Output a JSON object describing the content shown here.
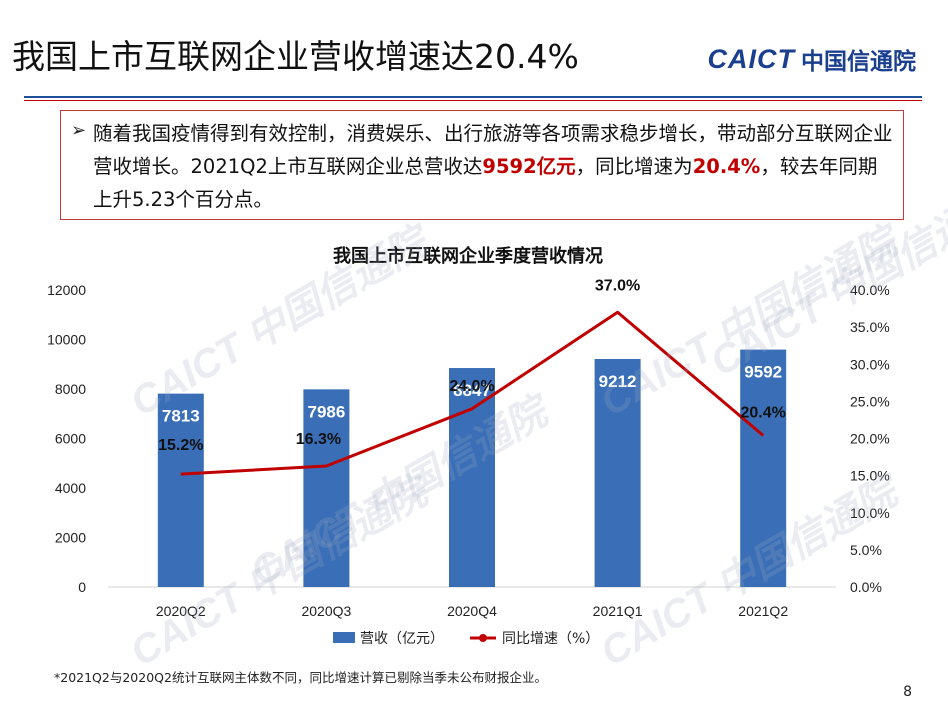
{
  "header": {
    "title": "我国上市互联网企业营收增速达20.4%",
    "logo_en": "CAICT",
    "logo_cn": "中国信通院"
  },
  "callout": {
    "bullet_icon": "arrow-bullet-icon",
    "text_part1": "随着我国疫情得到有效控制，消费娱乐、出行旅游等各项需求稳步增长，带动部分互联网企业营收增长。2021Q2上市互联网企业总营收达",
    "highlight1": "9592亿元",
    "text_part2": "，同比增速为",
    "highlight2": "20.4%",
    "text_part3": "，较去年同期上升5.23个百分点。"
  },
  "chart_data": {
    "type": "bar",
    "title": "我国上市互联网企业季度营收情况",
    "categories": [
      "2020Q2",
      "2020Q3",
      "2020Q4",
      "2021Q1",
      "2021Q2"
    ],
    "series": [
      {
        "name": "营收（亿元）",
        "type": "bar",
        "axis": "left",
        "values": [
          7813,
          7986,
          8847,
          9212,
          9592
        ],
        "color": "#3a6fb8"
      },
      {
        "name": "同比增速（%）",
        "type": "line",
        "axis": "right",
        "values": [
          15.2,
          16.3,
          24.0,
          37.0,
          20.4
        ],
        "labels": [
          "15.2%",
          "16.3%",
          "24.0%",
          "37.0%",
          "20.4%"
        ],
        "color": "#c00000"
      }
    ],
    "y_left": {
      "min": 0,
      "max": 12000,
      "ticks": [
        "0",
        "2000",
        "4000",
        "6000",
        "8000",
        "10000",
        "12000"
      ]
    },
    "y_right": {
      "min": 0,
      "max": 40,
      "ticks": [
        "0.0%",
        "5.0%",
        "10.0%",
        "15.0%",
        "20.0%",
        "25.0%",
        "30.0%",
        "35.0%",
        "40.0%"
      ]
    },
    "grid": false,
    "legend_position": "bottom"
  },
  "footnote": "*2021Q2与2020Q2统计互联网主体数不同，同比增速计算已剔除当季未公布财报企业。",
  "page_number": "8",
  "watermark": "CAICT 中国信通院"
}
